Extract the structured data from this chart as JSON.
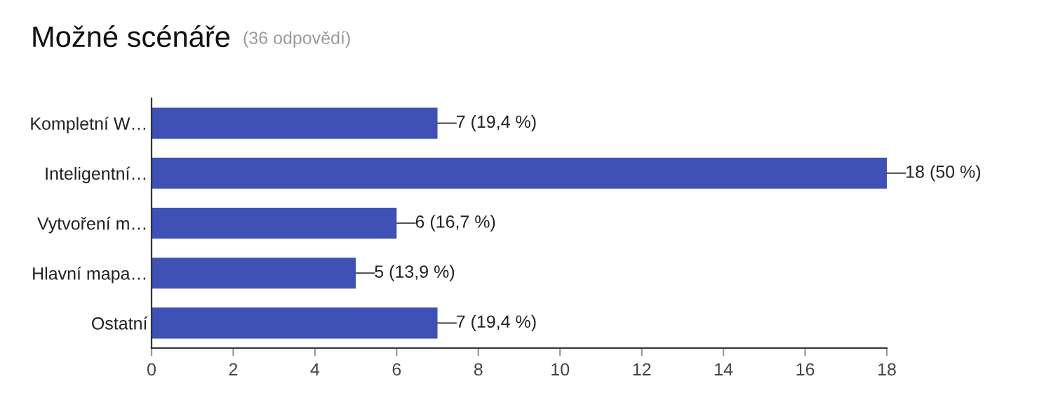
{
  "chart_data": {
    "type": "bar",
    "orientation": "horizontal",
    "title": "Možné scénáře",
    "subtitle": "(36 odpovědí)",
    "categories": [
      "Kompletní W…",
      "Inteligentní…",
      "Vytvoření m…",
      "Hlavní mapa…",
      "Ostatní"
    ],
    "values": [
      7,
      18,
      6,
      5,
      7
    ],
    "color": "#3f51b5",
    "value_labels": [
      "7 (19,4 %)",
      "18 (50 %)",
      "6 (16,7 %)",
      "5 (13,9 %)",
      "7 (19,4 %)"
    ],
    "xlim": [
      0,
      18
    ],
    "xticks": [
      0,
      2,
      4,
      6,
      8,
      10,
      12,
      14,
      16,
      18
    ],
    "grid": false
  }
}
